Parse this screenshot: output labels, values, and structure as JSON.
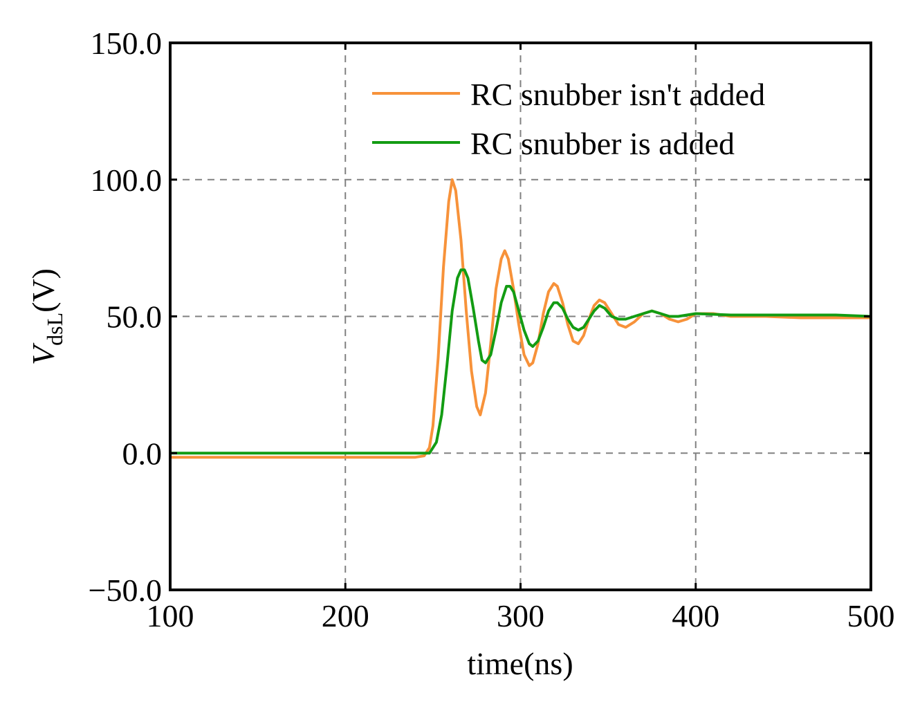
{
  "chart_data": {
    "type": "line",
    "title": "",
    "xlabel": "time(ns)",
    "ylabel_main": "V",
    "ylabel_sub": "dsL",
    "ylabel_unit": "(V)",
    "xlim": [
      100,
      500
    ],
    "ylim": [
      -50,
      150
    ],
    "xticks": [
      100,
      200,
      300,
      400,
      500
    ],
    "xtick_labels": [
      "100",
      "200",
      "300",
      "400",
      "500"
    ],
    "yticks": [
      -50,
      0,
      50,
      100,
      150
    ],
    "ytick_labels": [
      "−50.0",
      "0.0",
      "50.0",
      "100.0",
      "150.0"
    ],
    "grid": true,
    "legend_position": "top-right",
    "series": [
      {
        "name": "RC snubber isn't added",
        "color": "#F7923A",
        "x": [
          100,
          150,
          200,
          240,
          245,
          248,
          250,
          253,
          256,
          259,
          261,
          263,
          266,
          269,
          272,
          275,
          277,
          280,
          283,
          286,
          289,
          291,
          293,
          296,
          299,
          302,
          305,
          307,
          310,
          313,
          316,
          319,
          321,
          324,
          327,
          330,
          333,
          336,
          339,
          342,
          345,
          348,
          352,
          356,
          360,
          365,
          370,
          375,
          380,
          385,
          390,
          395,
          400,
          410,
          420,
          440,
          460,
          480,
          500
        ],
        "y": [
          -1.5,
          -1.5,
          -1.5,
          -1.5,
          -1,
          2,
          10,
          35,
          68,
          92,
          100,
          96,
          78,
          52,
          30,
          17,
          14,
          22,
          40,
          60,
          71,
          74,
          71,
          60,
          47,
          36,
          32,
          33,
          40,
          51,
          59,
          62,
          61,
          55,
          47,
          41,
          40,
          43,
          49,
          54,
          56,
          55,
          51,
          47,
          46,
          48,
          51,
          52,
          51,
          49,
          48,
          49,
          51,
          51,
          50,
          50,
          49.5,
          49.5,
          49.5
        ]
      },
      {
        "name": "RC snubber is added",
        "color": "#139C13",
        "x": [
          100,
          150,
          200,
          240,
          248,
          252,
          255,
          258,
          261,
          264,
          266,
          268,
          270,
          273,
          276,
          278,
          280,
          283,
          286,
          289,
          292,
          294,
          296,
          299,
          302,
          305,
          307,
          310,
          313,
          316,
          319,
          321,
          324,
          327,
          330,
          333,
          336,
          339,
          342,
          345,
          348,
          352,
          356,
          360,
          365,
          370,
          375,
          380,
          385,
          390,
          400,
          420,
          440,
          460,
          480,
          500
        ],
        "y": [
          0,
          0,
          0,
          0,
          0,
          4,
          14,
          32,
          52,
          64,
          67,
          67,
          64,
          53,
          41,
          34,
          33,
          36,
          45,
          55,
          61,
          61,
          59,
          52,
          45,
          40,
          39,
          41,
          46,
          52,
          55,
          55,
          53,
          49,
          46,
          45,
          46,
          49,
          52,
          54,
          53,
          50,
          49,
          49,
          50,
          51,
          52,
          51,
          50,
          50,
          51,
          50.5,
          50.5,
          50.5,
          50.5,
          50
        ]
      }
    ]
  }
}
